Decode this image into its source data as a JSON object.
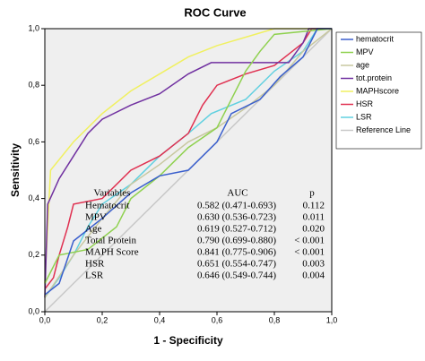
{
  "chart_data": {
    "type": "line",
    "title": "ROC Curve",
    "x_label": "1 - Specificity",
    "y_label": "Sensitivity",
    "xlim": [
      0,
      1
    ],
    "ylim": [
      0,
      1
    ],
    "xticks": [
      {
        "value": 0,
        "label": "0,0"
      },
      {
        "value": 0.2,
        "label": "0,2"
      },
      {
        "value": 0.4,
        "label": "0,4"
      },
      {
        "value": 0.6,
        "label": "0,6"
      },
      {
        "value": 0.8,
        "label": "0,8"
      },
      {
        "value": 1,
        "label": "1,0"
      }
    ],
    "yticks": [
      {
        "value": 0,
        "label": "0,0"
      },
      {
        "value": 0.2,
        "label": "0,2"
      },
      {
        "value": 0.4,
        "label": "0,4"
      },
      {
        "value": 0.6,
        "label": "0,6"
      },
      {
        "value": 0.8,
        "label": "0,8"
      },
      {
        "value": 1,
        "label": "1,0"
      }
    ],
    "legend": "right",
    "series": [
      {
        "name": "hematocrit",
        "color": "#3a5fcd",
        "x": [
          0,
          0.05,
          0.1,
          0.2,
          0.3,
          0.4,
          0.5,
          0.6,
          0.65,
          0.75,
          0.82,
          0.9,
          0.95,
          1
        ],
        "values": [
          0.06,
          0.1,
          0.25,
          0.33,
          0.42,
          0.48,
          0.5,
          0.6,
          0.7,
          0.75,
          0.83,
          0.9,
          1,
          1
        ]
      },
      {
        "name": "MPV",
        "color": "#8fd14f",
        "x": [
          0,
          0.05,
          0.15,
          0.25,
          0.3,
          0.4,
          0.5,
          0.6,
          0.7,
          0.75,
          0.8,
          1
        ],
        "values": [
          0.1,
          0.2,
          0.22,
          0.3,
          0.4,
          0.48,
          0.58,
          0.65,
          0.85,
          0.92,
          0.98,
          1
        ]
      },
      {
        "name": "age",
        "color": "#c8c8a0",
        "x": [
          0,
          0.1,
          0.2,
          0.3,
          0.4,
          0.5,
          0.6,
          0.7,
          0.8,
          0.9,
          1
        ],
        "values": [
          0.05,
          0.2,
          0.33,
          0.45,
          0.52,
          0.6,
          0.65,
          0.72,
          0.8,
          0.92,
          1
        ]
      },
      {
        "name": "tot.protein",
        "color": "#7030a0",
        "x": [
          0,
          0.01,
          0.05,
          0.1,
          0.15,
          0.2,
          0.3,
          0.4,
          0.5,
          0.58,
          0.85,
          0.9,
          0.92,
          1
        ],
        "values": [
          0.05,
          0.38,
          0.47,
          0.55,
          0.63,
          0.68,
          0.73,
          0.77,
          0.84,
          0.88,
          0.88,
          0.95,
          1,
          1
        ]
      },
      {
        "name": "MAPHscore",
        "color": "#f0f060",
        "x": [
          0,
          0.02,
          0.1,
          0.2,
          0.3,
          0.4,
          0.5,
          0.6,
          0.7,
          0.8,
          1
        ],
        "values": [
          0.1,
          0.5,
          0.6,
          0.7,
          0.78,
          0.84,
          0.9,
          0.94,
          0.97,
          1,
          1
        ]
      },
      {
        "name": "HSR",
        "color": "#e03050",
        "x": [
          0,
          0.03,
          0.05,
          0.08,
          0.1,
          0.2,
          0.3,
          0.4,
          0.5,
          0.55,
          0.6,
          0.7,
          0.8,
          0.9,
          0.93,
          1
        ],
        "values": [
          0.08,
          0.12,
          0.2,
          0.3,
          0.38,
          0.4,
          0.5,
          0.55,
          0.63,
          0.73,
          0.8,
          0.84,
          0.87,
          0.95,
          1,
          1
        ]
      },
      {
        "name": "LSR",
        "color": "#60d0e0",
        "x": [
          0,
          0.05,
          0.1,
          0.15,
          0.2,
          0.3,
          0.4,
          0.5,
          0.58,
          0.7,
          0.8,
          0.9,
          0.95,
          1
        ],
        "values": [
          0.05,
          0.12,
          0.2,
          0.3,
          0.38,
          0.45,
          0.55,
          0.63,
          0.7,
          0.75,
          0.85,
          0.92,
          1,
          1
        ]
      },
      {
        "name": "Reference Line",
        "color": "#c8c8c8",
        "x": [
          0,
          1
        ],
        "values": [
          0,
          1
        ]
      }
    ],
    "table": {
      "header": [
        "Variables",
        "AUC",
        "p"
      ],
      "rows": [
        [
          "Hematocrit",
          "0.582 (0.471-0.693)",
          "0.112"
        ],
        [
          "MPV",
          "0.630 (0.536-0.723)",
          "0.011"
        ],
        [
          "Age",
          "0.619 (0.527-0.712)",
          "0.020"
        ],
        [
          "Total Protein",
          "0.790 (0.699-0.880)",
          "< 0.001"
        ],
        [
          "MAPH Score",
          "0.841 (0.775-0.906)",
          "< 0.001"
        ],
        [
          "HSR",
          "0.651 (0.554-0.747)",
          "0.003"
        ],
        [
          "LSR",
          "0.646 (0.549-0.744)",
          "0.004"
        ]
      ]
    }
  }
}
